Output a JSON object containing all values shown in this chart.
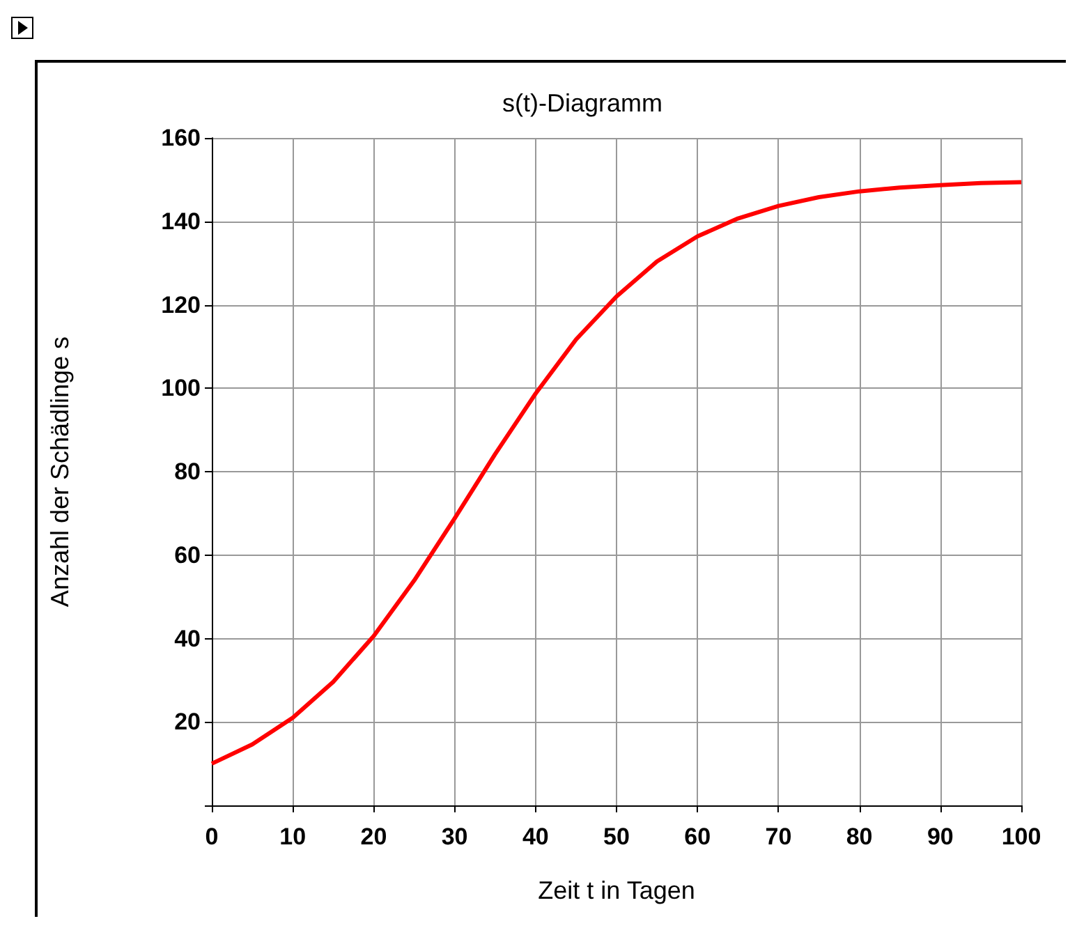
{
  "chart_data": {
    "type": "line",
    "title": "s(t)-Diagramm",
    "xlabel": "Zeit t in Tagen",
    "ylabel": "Anzahl der Schädlinge s",
    "x": [
      0,
      5,
      10,
      15,
      20,
      25,
      30,
      35,
      40,
      45,
      50,
      55,
      60,
      65,
      70,
      75,
      80,
      85,
      90,
      95,
      100
    ],
    "series": [
      {
        "color": "#ff0000",
        "values": [
          10,
          14.6,
          21,
          29.6,
          40.6,
          53.9,
          68.8,
          84.2,
          98.7,
          111.7,
          122,
          130.4,
          136.4,
          140.7,
          143.7,
          145.8,
          147.2,
          148.1,
          148.7,
          149.2,
          149.4
        ]
      }
    ],
    "xlim": [
      0,
      100
    ],
    "ylim": [
      0,
      160
    ],
    "xticks": [
      0,
      10,
      20,
      30,
      40,
      50,
      60,
      70,
      80,
      90,
      100
    ],
    "yticks": [
      {
        "value": 0,
        "label": null
      },
      20,
      40,
      60,
      80,
      100,
      120,
      140,
      160
    ],
    "grid": true,
    "line_style": "solid"
  }
}
